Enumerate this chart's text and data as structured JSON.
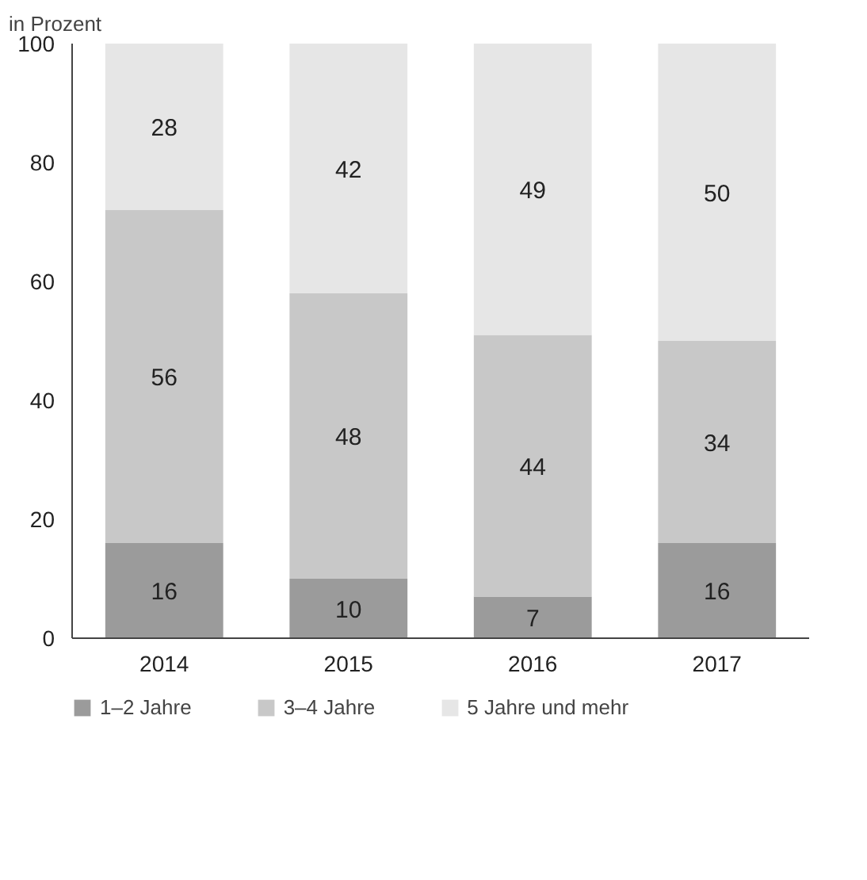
{
  "chart_data": {
    "type": "bar",
    "stacked": true,
    "ylabel": "in Prozent",
    "categories": [
      "2014",
      "2015",
      "2016",
      "2017"
    ],
    "series": [
      {
        "name": "1–2 Jahre",
        "color": "#9b9b9b",
        "values": [
          16,
          10,
          7,
          16
        ]
      },
      {
        "name": "3–4 Jahre",
        "color": "#c8c8c8",
        "values": [
          56,
          48,
          44,
          34
        ]
      },
      {
        "name": "5 Jahre und mehr",
        "color": "#e6e6e6",
        "values": [
          28,
          42,
          49,
          50
        ]
      }
    ],
    "ylim": [
      0,
      100
    ],
    "yticks": [
      0,
      20,
      40,
      60,
      80,
      100
    ],
    "data_labels": true,
    "legend": "bottom",
    "grid": false
  }
}
